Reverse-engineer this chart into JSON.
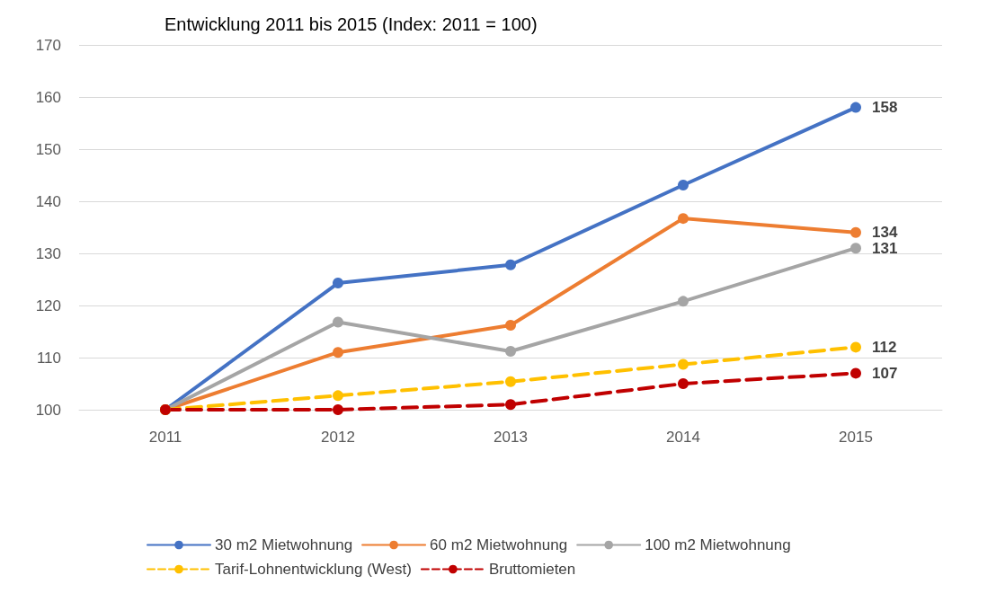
{
  "chart_data": {
    "type": "line",
    "title": "Entwicklung 2011 bis 2015 (Index: 2011 = 100)",
    "categories": [
      "2011",
      "2012",
      "2013",
      "2014",
      "2015"
    ],
    "ylim": [
      100,
      170
    ],
    "yticks": [
      100,
      110,
      120,
      130,
      140,
      150,
      160,
      170
    ],
    "grid": "y",
    "legend": "bottom",
    "marker": "circle",
    "series": [
      {
        "name": "30 m2 Mietwohnung",
        "color": "#4472c4",
        "line_style": "solid",
        "values": [
          100,
          124.3,
          127.8,
          143.1,
          158
        ],
        "value_labels": [
          null,
          null,
          null,
          null,
          "158"
        ]
      },
      {
        "name": "60 m2 Mietwohnung",
        "color": "#ed7d31",
        "line_style": "solid",
        "values": [
          100,
          111,
          116.2,
          136.7,
          134
        ],
        "value_labels": [
          null,
          null,
          null,
          null,
          "134"
        ]
      },
      {
        "name": "100 m2 Mietwohnung",
        "color": "#a5a5a5",
        "line_style": "solid",
        "values": [
          100,
          116.8,
          111.2,
          120.8,
          131
        ],
        "value_labels": [
          null,
          null,
          null,
          null,
          "131"
        ]
      },
      {
        "name": "Tarif-Lohnentwicklung (West)",
        "color": "#ffc000",
        "line_style": "dashed",
        "values": [
          100,
          102.7,
          105.4,
          108.7,
          112
        ],
        "value_labels": [
          null,
          null,
          null,
          null,
          "112"
        ]
      },
      {
        "name": "Bruttomieten",
        "color": "#c00000",
        "line_style": "dashed",
        "values": [
          100,
          100,
          101,
          105,
          107
        ],
        "value_labels": [
          null,
          null,
          null,
          null,
          "107"
        ]
      }
    ]
  }
}
